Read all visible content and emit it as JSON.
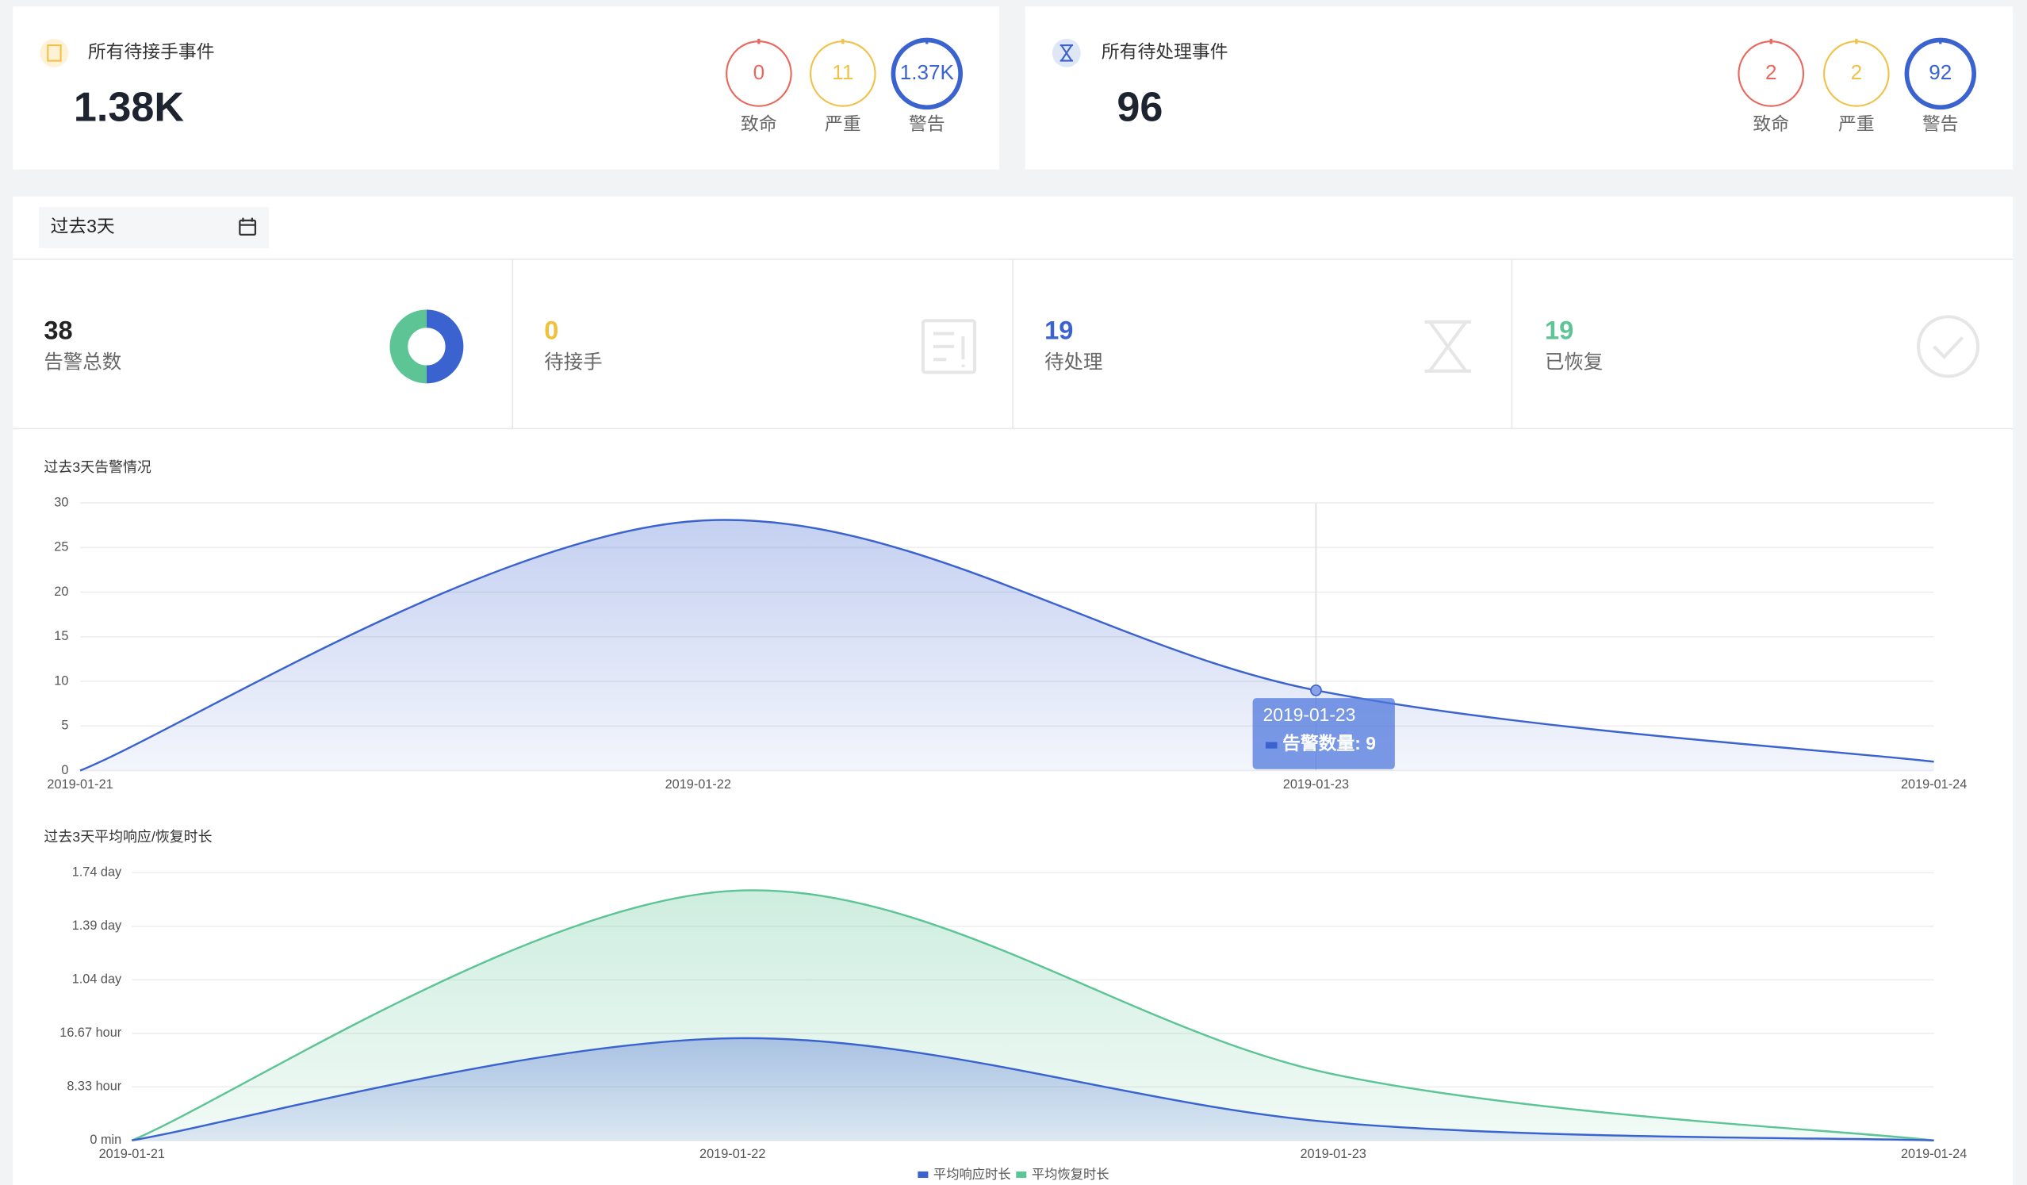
{
  "cards": [
    {
      "title": "所有待接手事件",
      "value": "1.38K",
      "levels": [
        {
          "value": "0",
          "label": "致命",
          "color": "#e8685e"
        },
        {
          "value": "11",
          "label": "严重",
          "color": "#f0c24a"
        },
        {
          "value": "1.37K",
          "label": "警告",
          "color": "#3b63d0"
        }
      ]
    },
    {
      "title": "所有待处理事件",
      "value": "96",
      "levels": [
        {
          "value": "2",
          "label": "致命",
          "color": "#e8685e"
        },
        {
          "value": "2",
          "label": "严重",
          "color": "#f0c24a"
        },
        {
          "value": "92",
          "label": "警告",
          "color": "#3b63d0"
        }
      ]
    }
  ],
  "date_range": "过去3天",
  "stats": [
    {
      "value": 38,
      "label": "告警总数",
      "color": "#222222"
    },
    {
      "value": 0,
      "label": "待接手",
      "color": "#f0c03a"
    },
    {
      "value": 19,
      "label": "待处理",
      "color": "#3b63d0"
    },
    {
      "value": 19,
      "label": "已恢复",
      "color": "#5cc495"
    }
  ],
  "chart_data": [
    {
      "type": "area",
      "title": "过去3天告警情况",
      "categories": [
        "2019-01-21",
        "2019-01-22",
        "2019-01-23",
        "2019-01-24"
      ],
      "series": [
        {
          "name": "告警数量",
          "color": "#3b63d0",
          "values": [
            0,
            28,
            9,
            1
          ]
        }
      ],
      "ylim": [
        0,
        30
      ],
      "yticks": [
        0,
        5,
        10,
        15,
        20,
        25,
        30
      ],
      "grid": true,
      "tooltip": {
        "title": "2019-01-23",
        "label": "告警数量: 9"
      }
    },
    {
      "type": "area",
      "title": "过去3天平均响应/恢复时长",
      "categories": [
        "2019-01-21",
        "2019-01-22",
        "2019-01-23",
        "2019-01-24"
      ],
      "series": [
        {
          "name": "平均响应时长",
          "color": "#3b63d0",
          "values": [
            0,
            15.9,
            2.8,
            0
          ]
        },
        {
          "name": "平均恢复时长",
          "color": "#5cc495",
          "values": [
            0,
            38.85,
            10.3,
            0
          ]
        }
      ],
      "ylim": [
        0,
        41.67
      ],
      "yticks": [
        {
          "value": 0,
          "label": "0 min"
        },
        {
          "value": 8.33,
          "label": "8.33 hour"
        },
        {
          "value": 16.67,
          "label": "16.67 hour"
        },
        {
          "value": 25,
          "label": "1.04 day"
        },
        {
          "value": 33.33,
          "label": "1.39 day"
        },
        {
          "value": 41.67,
          "label": "1.74 day"
        }
      ],
      "grid": true,
      "legend": "bottom"
    }
  ]
}
